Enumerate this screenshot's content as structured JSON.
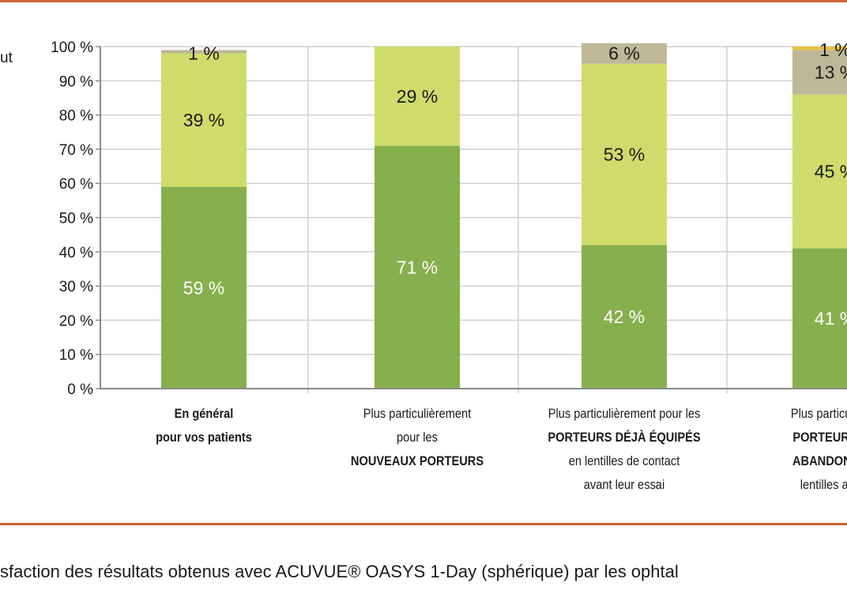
{
  "colors": {
    "rule": "#c9642f",
    "very_satisfied": "#87af4e",
    "satisfied": "#cddc6a",
    "neutral": "#beb898",
    "top": "#e8c13e",
    "grid": "#d0d0d0",
    "axis": "#8a8a8a"
  },
  "left_fragment": "ut",
  "caption": "sfaction des résultats obtenus avec ACUVUE® OASYS 1-Day (sphérique) par les ophtal",
  "chart_data": {
    "type": "bar",
    "stacked": true,
    "ylim": [
      0,
      100
    ],
    "yticks": [
      "0 %",
      "10 %",
      "20 %",
      "30 %",
      "40 %",
      "50 %",
      "60 %",
      "70 %",
      "80 %",
      "90 %",
      "100 %"
    ],
    "grid": true,
    "categories": [
      {
        "lines": [
          [
            {
              "t": "En général",
              "b": true
            }
          ],
          [
            {
              "t": "pour vos patients",
              "b": true
            }
          ]
        ]
      },
      {
        "lines": [
          [
            {
              "t": "Plus particulièrement",
              "b": false
            }
          ],
          [
            {
              "t": "pour les",
              "b": false
            }
          ],
          [
            {
              "t": "NOUVEAUX PORTEURS",
              "b": true
            }
          ]
        ]
      },
      {
        "lines": [
          [
            {
              "t": "Plus particulièrement pour les",
              "b": false
            }
          ],
          [
            {
              "t": "PORTEURS DÉJÀ ÉQUIPÉS",
              "b": true
            }
          ],
          [
            {
              "t": "en lentilles de contact",
              "b": false
            }
          ],
          [
            {
              "t": "avant leur essai",
              "b": false
            }
          ]
        ]
      },
      {
        "lines": [
          [
            {
              "t": "Plus particulièren",
              "b": false
            }
          ],
          [
            {
              "t": "PORTEURS QU",
              "b": true
            }
          ],
          [
            {
              "t": "ABANDONNÉ L",
              "b": true
            }
          ],
          [
            {
              "t": "lentilles avant",
              "b": false
            }
          ]
        ]
      }
    ],
    "series": [
      {
        "color_key": "very_satisfied",
        "values": [
          59,
          71,
          42,
          41
        ],
        "labels": [
          "59 %",
          "71 %",
          "42 %",
          "41 %"
        ],
        "label_color": "#ffffff"
      },
      {
        "color_key": "satisfied",
        "values": [
          39,
          29,
          53,
          45
        ],
        "labels": [
          "39 %",
          "29 %",
          "53 %",
          "45 %"
        ],
        "label_color": "#1a1a1a"
      },
      {
        "color_key": "neutral",
        "values": [
          1,
          0,
          6,
          13
        ],
        "labels": [
          "1 %",
          "",
          "6 %",
          "13 %"
        ],
        "label_color": "#1a1a1a"
      },
      {
        "color_key": "top",
        "values": [
          0,
          0,
          0,
          1
        ],
        "labels": [
          "",
          "",
          "",
          "1 %"
        ],
        "label_color": "#1a1a1a"
      }
    ]
  }
}
